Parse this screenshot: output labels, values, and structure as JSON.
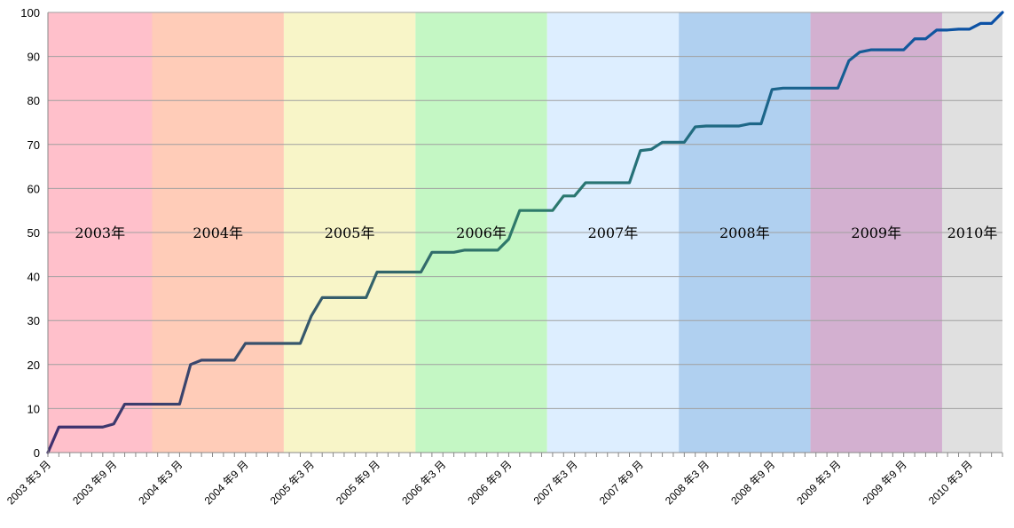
{
  "chart_data": {
    "type": "line",
    "title": "",
    "xlabel": "",
    "ylabel": "",
    "ylim": [
      0,
      100
    ],
    "yticks": [
      0,
      10,
      20,
      30,
      40,
      50,
      60,
      70,
      80,
      90,
      100
    ],
    "grid": true,
    "legend": "none",
    "line_color_start": "#3f2f6e",
    "line_color_mid": "#2e7b6a",
    "line_color_end": "#0a4fa8",
    "year_bands": [
      {
        "label": "2003年",
        "color": "#ffc0cb"
      },
      {
        "label": "2004年",
        "color": "#ffccb8"
      },
      {
        "label": "2005年",
        "color": "#f8f5c8"
      },
      {
        "label": "2006年",
        "color": "#c4f7c4"
      },
      {
        "label": "2007年",
        "color": "#ddeeff"
      },
      {
        "label": "2008年",
        "color": "#b0d0f0"
      },
      {
        "label": "2009年",
        "color": "#d3b0d0"
      },
      {
        "label": "2010年",
        "color": "#e0e0e0"
      }
    ],
    "x_tick_labels": [
      "2003 年3 月",
      "2003 年9 月",
      "2004 年3 月",
      "2004 年9 月",
      "2005 年3 月",
      "2005 年9 月",
      "2006 年3 月",
      "2006 年9 月",
      "2007 年3 月",
      "2007 年9 月",
      "2008 年3 月",
      "2008 年9 月",
      "2009 年3 月",
      "2009 年9 月",
      "2010 年3 月"
    ],
    "series": [
      {
        "values": [
          0,
          5.8,
          5.8,
          5.8,
          5.8,
          5.8,
          6.5,
          11,
          11,
          11,
          11,
          11,
          11,
          20,
          21,
          21,
          21,
          21,
          24.8,
          24.8,
          24.8,
          24.8,
          24.8,
          24.8,
          31,
          35.2,
          35.2,
          35.2,
          35.2,
          35.2,
          41,
          41,
          41,
          41,
          41,
          45.5,
          45.5,
          45.5,
          46,
          46,
          46,
          46,
          48.5,
          55,
          55,
          55,
          55,
          58.3,
          58.3,
          61.3,
          61.3,
          61.3,
          61.3,
          61.3,
          68.6,
          68.9,
          70.5,
          70.5,
          70.5,
          74,
          74.2,
          74.2,
          74.2,
          74.2,
          74.7,
          74.7,
          82.5,
          82.8,
          82.8,
          82.8,
          82.8,
          82.8,
          82.8,
          89,
          91,
          91.5,
          91.5,
          91.5,
          91.5,
          94,
          94,
          96,
          96,
          96.2,
          96.2,
          97.5,
          97.5,
          100
        ]
      }
    ]
  }
}
